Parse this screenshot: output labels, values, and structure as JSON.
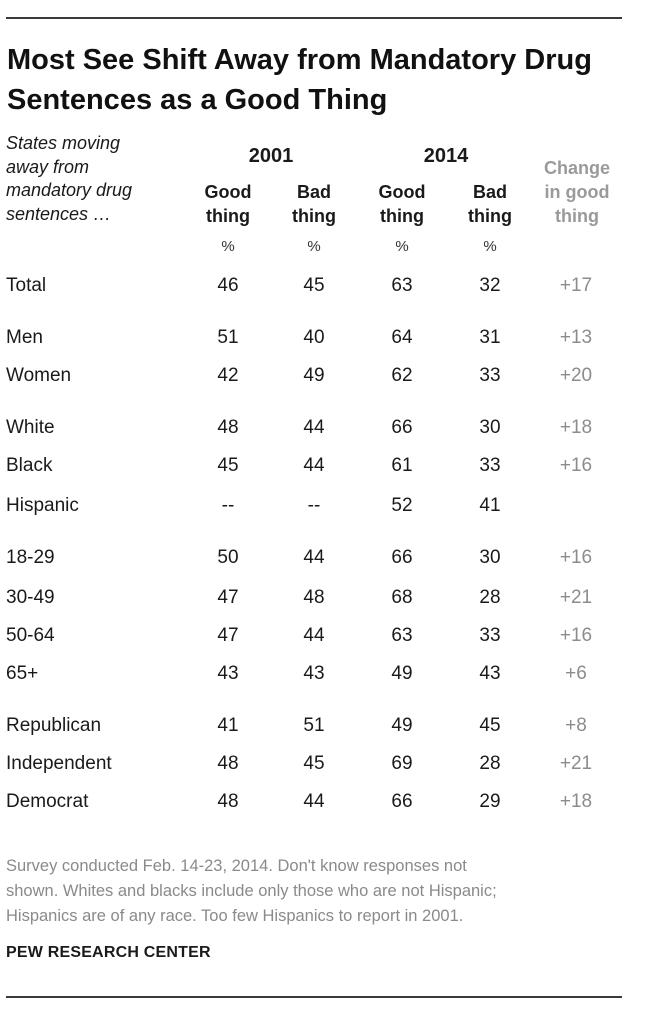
{
  "title": "Most See Shift Away from Mandatory Drug Sentences as a Good Thing",
  "question": "States moving\naway from\nmandatory drug\nsentences …",
  "years": [
    "2001",
    "2014"
  ],
  "columns": {
    "good": "Good\nthing",
    "bad": "Bad\nthing",
    "change": "Change\nin good\nthing"
  },
  "pct_symbol": "%",
  "rows": [
    {
      "label": "Total",
      "g2001": "46",
      "b2001": "45",
      "g2014": "63",
      "b2014": "32",
      "change": "+17"
    },
    {
      "label": "Men",
      "g2001": "51",
      "b2001": "40",
      "g2014": "64",
      "b2014": "31",
      "change": "+13"
    },
    {
      "label": "Women",
      "g2001": "42",
      "b2001": "49",
      "g2014": "62",
      "b2014": "33",
      "change": "+20"
    },
    {
      "label": "White",
      "g2001": "48",
      "b2001": "44",
      "g2014": "66",
      "b2014": "30",
      "change": "+18"
    },
    {
      "label": "Black",
      "g2001": "45",
      "b2001": "44",
      "g2014": "61",
      "b2014": "33",
      "change": "+16"
    },
    {
      "label": "Hispanic",
      "g2001": "--",
      "b2001": "--",
      "g2014": "52",
      "b2014": "41",
      "change": ""
    },
    {
      "label": "18-29",
      "g2001": "50",
      "b2001": "44",
      "g2014": "66",
      "b2014": "30",
      "change": "+16"
    },
    {
      "label": "30-49",
      "g2001": "47",
      "b2001": "48",
      "g2014": "68",
      "b2014": "28",
      "change": "+21"
    },
    {
      "label": "50-64",
      "g2001": "47",
      "b2001": "44",
      "g2014": "63",
      "b2014": "33",
      "change": "+16"
    },
    {
      "label": "65+",
      "g2001": "43",
      "b2001": "43",
      "g2014": "49",
      "b2014": "43",
      "change": "+6"
    },
    {
      "label": "Republican",
      "g2001": "41",
      "b2001": "51",
      "g2014": "49",
      "b2014": "45",
      "change": "+8"
    },
    {
      "label": "Independent",
      "g2001": "48",
      "b2001": "45",
      "g2014": "69",
      "b2014": "28",
      "change": "+21"
    },
    {
      "label": "Democrat",
      "g2001": "48",
      "b2001": "44",
      "g2014": "66",
      "b2014": "29",
      "change": "+18"
    }
  ],
  "note": "Survey conducted Feb. 14-23, 2014. Don't know responses not\nshown. Whites and blacks include only those who are not Hispanic;\nHispanics are of any race. Too few Hispanics to report in 2001.",
  "source": "PEW RESEARCH CENTER",
  "colors": {
    "text": "#1a1a1a",
    "muted": "#8c8c8c",
    "rule": "#3a3a3a"
  }
}
